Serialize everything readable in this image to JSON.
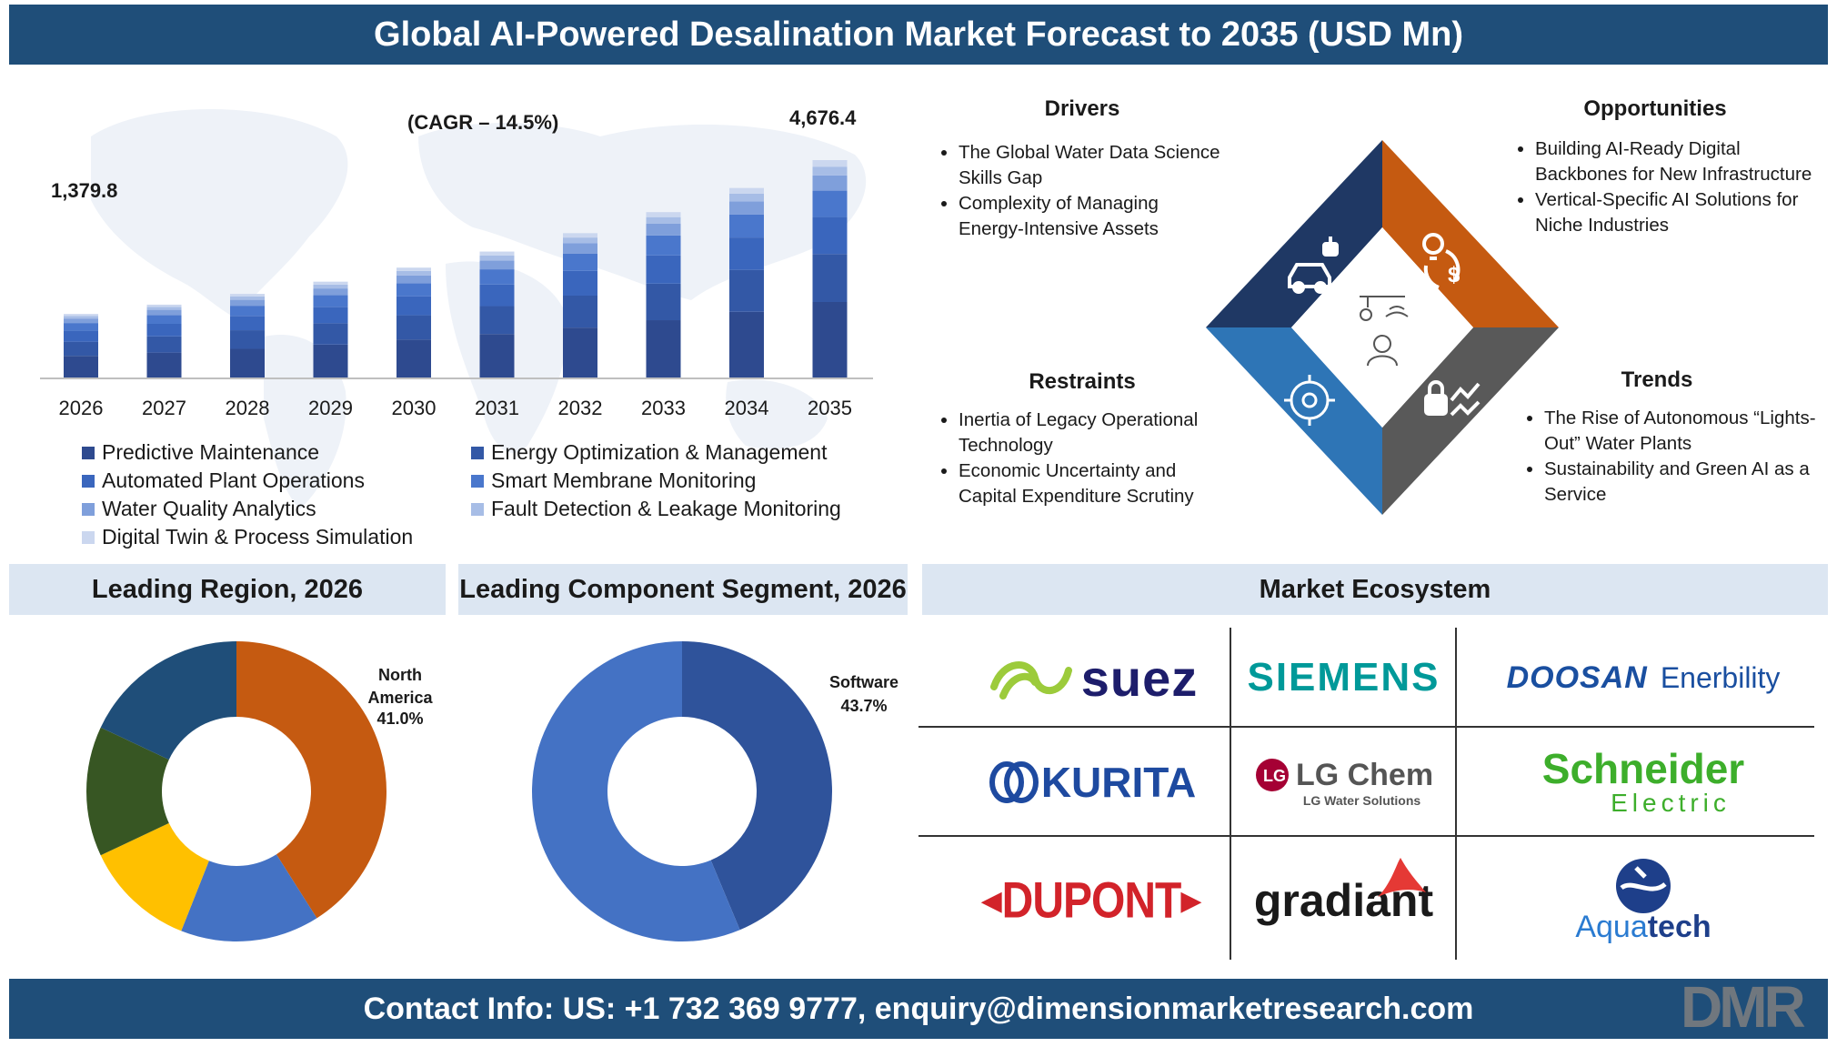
{
  "title": "Global AI-Powered Desalination Market Forecast to 2035 (USD Mn)",
  "footer": "Contact Info: US: +1 732 369 9777, enquiry@dimensionmarketresearch.com",
  "brand_logo": "DMR",
  "chart_data": [
    {
      "type": "bar",
      "stacked": true,
      "categories": [
        "2026",
        "2027",
        "2028",
        "2029",
        "2030",
        "2031",
        "2032",
        "2033",
        "2034",
        "2035"
      ],
      "totals": [
        1379.8,
        1580,
        1810,
        2072,
        2373,
        2717,
        3111,
        3562,
        4079,
        4676.4
      ],
      "total_labels": {
        "first": "1,379.8",
        "last": "4,676.4"
      },
      "annotation": "(CAGR – 14.5%)",
      "series": [
        {
          "name": "Predictive Maintenance",
          "share": 0.35,
          "color": "#2e4a8f"
        },
        {
          "name": "Energy Optimization & Management",
          "share": 0.22,
          "color": "#3358a6"
        },
        {
          "name": "Automated Plant Operations",
          "share": 0.17,
          "color": "#3a66bd"
        },
        {
          "name": "Smart Membrane Monitoring",
          "share": 0.12,
          "color": "#4a77cc"
        },
        {
          "name": "Water Quality Analytics",
          "share": 0.07,
          "color": "#7f9fdb"
        },
        {
          "name": "Fault Detection & Leakage Monitoring",
          "share": 0.04,
          "color": "#a7bde6"
        },
        {
          "name": "Digital Twin & Process Simulation",
          "share": 0.03,
          "color": "#cbd7ef"
        }
      ]
    },
    {
      "type": "pie",
      "title": "Leading Region, 2026",
      "slices": [
        {
          "label": "North America",
          "value": 41.0,
          "color": "#c55a11"
        },
        {
          "label": "",
          "value": 15.0,
          "color": "#4472c4"
        },
        {
          "label": "",
          "value": 12.0,
          "color": "#ffc000"
        },
        {
          "label": "",
          "value": 14.0,
          "color": "#375623"
        },
        {
          "label": "",
          "value": 18.0,
          "color": "#1f4e79"
        }
      ],
      "callout": {
        "label": "North\nAmerica",
        "value_text": "41.0%"
      }
    },
    {
      "type": "pie",
      "title": "Leading Component Segment, 2026",
      "slices": [
        {
          "label": "Software",
          "value": 43.7,
          "color": "#2f539b"
        },
        {
          "label": "",
          "value": 56.3,
          "color": "#4472c4"
        }
      ],
      "callout": {
        "label": "Software",
        "value_text": "43.7%"
      }
    }
  ],
  "dynamics": {
    "drivers": {
      "title": "Drivers",
      "color": "#1f3864",
      "items": [
        "The Global Water Data Science Skills Gap",
        "Complexity of Managing Energy-Intensive Assets"
      ]
    },
    "opportunities": {
      "title": "Opportunities",
      "color": "#c55a11",
      "items": [
        "Building AI-Ready Digital Backbones for New Infrastructure",
        "Vertical-Specific AI Solutions for Niche Industries"
      ]
    },
    "restraints": {
      "title": "Restraints",
      "color": "#2e75b6",
      "items": [
        "Inertia of Legacy Operational Technology",
        "Economic Uncertainty and Capital Expenditure Scrutiny"
      ]
    },
    "trends": {
      "title": "Trends",
      "color": "#404040",
      "items": [
        "The Rise of Autonomous “Lights-Out” Water Plants",
        "Sustainability and Green AI as a Service"
      ]
    },
    "icons": [
      "robot-car-icon",
      "bulb-dollar-icon",
      "network-icon",
      "lock-chart-icon",
      "person-lightbulb-icon"
    ]
  },
  "ecosystem": {
    "title": "Market Ecosystem",
    "logos": [
      {
        "name": "suez",
        "text": "suez",
        "color": "#1d1d6b"
      },
      {
        "name": "siemens",
        "text": "SIEMENS",
        "color": "#009999"
      },
      {
        "name": "doosan",
        "text": "DOOSAN",
        "text2": "Enerbility",
        "color": "#1a4fa0"
      },
      {
        "name": "kurita",
        "text": "KURITA",
        "color": "#1e4aa0"
      },
      {
        "name": "lgchem",
        "text": "LG Chem",
        "text2": "LG Water Solutions",
        "color": "#555555"
      },
      {
        "name": "schneider",
        "text": "Schneider",
        "text2": "Electric",
        "color": "#3dae2b"
      },
      {
        "name": "dupont",
        "text": "DUPONT",
        "color": "#d2232a"
      },
      {
        "name": "gradiant",
        "text": "gradiant",
        "color": "#1a1a1a"
      },
      {
        "name": "aquatech",
        "text": "Aqua",
        "text2": "tech",
        "color": "#1e4aa0"
      }
    ]
  }
}
